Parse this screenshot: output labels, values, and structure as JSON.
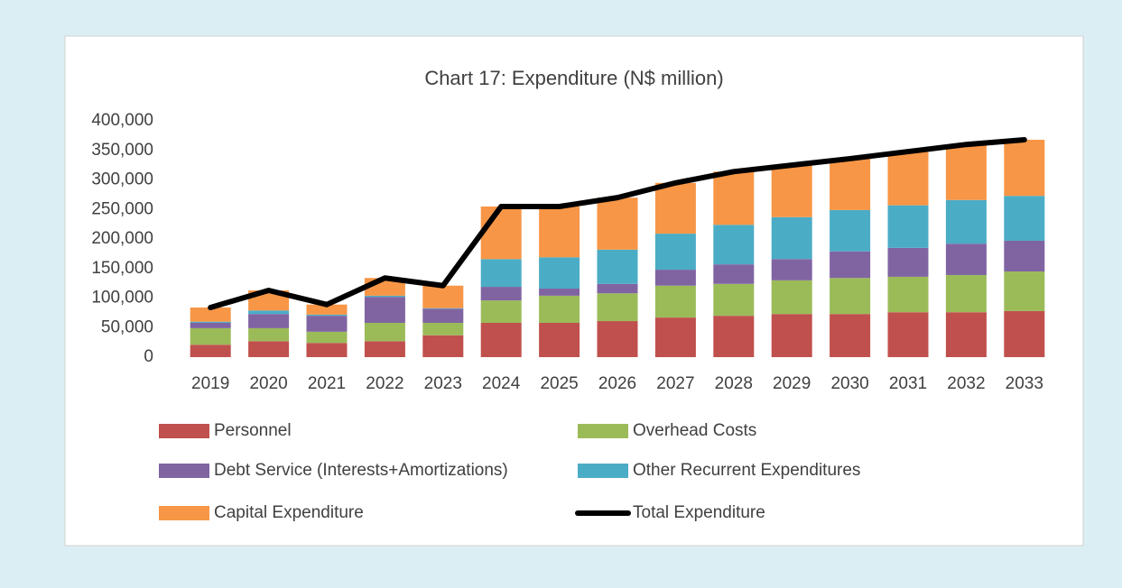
{
  "chart_data": {
    "type": "bar",
    "title": "Chart 17: Expenditure  (N$ million)",
    "categories": [
      "2019",
      "2020",
      "2021",
      "2022",
      "2023",
      "2024",
      "2025",
      "2026",
      "2027",
      "2028",
      "2029",
      "2030",
      "2031",
      "2032",
      "2033"
    ],
    "series": [
      {
        "name": "Personnel",
        "color": "#c0504d",
        "values": [
          21000,
          27000,
          24000,
          27000,
          37000,
          58000,
          58000,
          61000,
          67000,
          70000,
          73000,
          73000,
          76000,
          76000,
          78000
        ]
      },
      {
        "name": "Overhead Costs",
        "color": "#9bbb59",
        "values": [
          28000,
          22000,
          19000,
          31000,
          21000,
          38000,
          46000,
          47000,
          54000,
          54000,
          57000,
          61000,
          60000,
          63000,
          67000
        ]
      },
      {
        "name": "Debt Service (Interests+Amortizations)",
        "color": "#8064a2",
        "values": [
          9000,
          24000,
          27000,
          44000,
          24000,
          23000,
          12000,
          16000,
          27000,
          33000,
          36000,
          45000,
          49000,
          53000,
          52000
        ]
      },
      {
        "name": "Other Recurrent Expenditures",
        "color": "#4bacc6",
        "values": [
          2000,
          6000,
          2000,
          2000,
          1000,
          47000,
          53000,
          58000,
          61000,
          67000,
          71000,
          70000,
          72000,
          74000,
          76000
        ]
      },
      {
        "name": "Capital Expenditure",
        "color": "#f79646",
        "values": [
          24000,
          34000,
          17000,
          30000,
          38000,
          89000,
          86000,
          88000,
          86000,
          90000,
          88000,
          87000,
          91000,
          94000,
          95000
        ]
      },
      {
        "name": "Total Expenditure",
        "color": "#000000",
        "type": "line",
        "values": [
          84000,
          113000,
          89000,
          134000,
          121000,
          255000,
          255000,
          270000,
          295000,
          314000,
          325000,
          336000,
          348000,
          360000,
          368000
        ]
      }
    ],
    "ylim": [
      0,
      400000
    ],
    "yticks": [
      0,
      {
        "value": 50000,
        "label": "50,000"
      },
      {
        "value": 100000,
        "label": "100,000"
      },
      {
        "value": 150000,
        "label": "150,000"
      },
      {
        "value": 200000,
        "label": "200,000"
      },
      {
        "value": 250000,
        "label": "250,000"
      },
      {
        "value": 300000,
        "label": "300,000"
      },
      {
        "value": 350000,
        "label": "350,000"
      },
      {
        "value": 400000,
        "label": "400,000"
      }
    ],
    "grid": false,
    "legend": "bottom"
  }
}
